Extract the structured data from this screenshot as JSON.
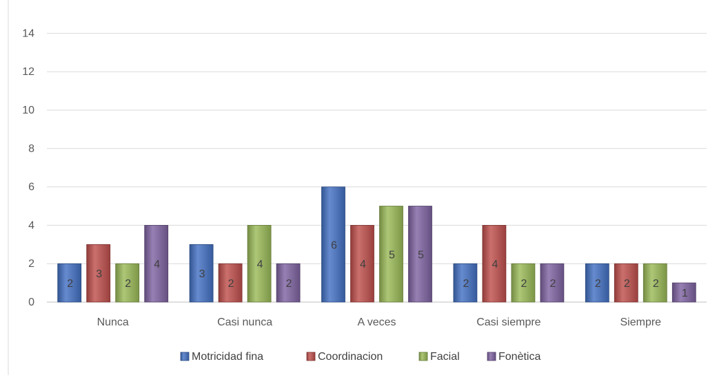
{
  "chart_data": {
    "type": "bar",
    "title": "",
    "xlabel": "",
    "ylabel": "",
    "categories": [
      "Nunca",
      "Casi nunca",
      "A veces",
      "Casi siempre",
      "Siempre"
    ],
    "ylim": [
      0,
      14
    ],
    "yticks": [
      0,
      2,
      4,
      6,
      8,
      10,
      12,
      14
    ],
    "grid": true,
    "legend_position": "bottom",
    "series": [
      {
        "name": "Motricidad fina",
        "values": [
          2,
          3,
          6,
          2,
          2
        ],
        "color": "#4472C4"
      },
      {
        "name": "Coordinacion",
        "values": [
          3,
          2,
          4,
          4,
          2
        ],
        "color": "#C0504D"
      },
      {
        "name": "Facial",
        "values": [
          2,
          4,
          5,
          2,
          2
        ],
        "color": "#9BBB59"
      },
      {
        "name": "Fonètica",
        "values": [
          4,
          2,
          5,
          2,
          1
        ],
        "color": "#8064A2"
      }
    ]
  }
}
